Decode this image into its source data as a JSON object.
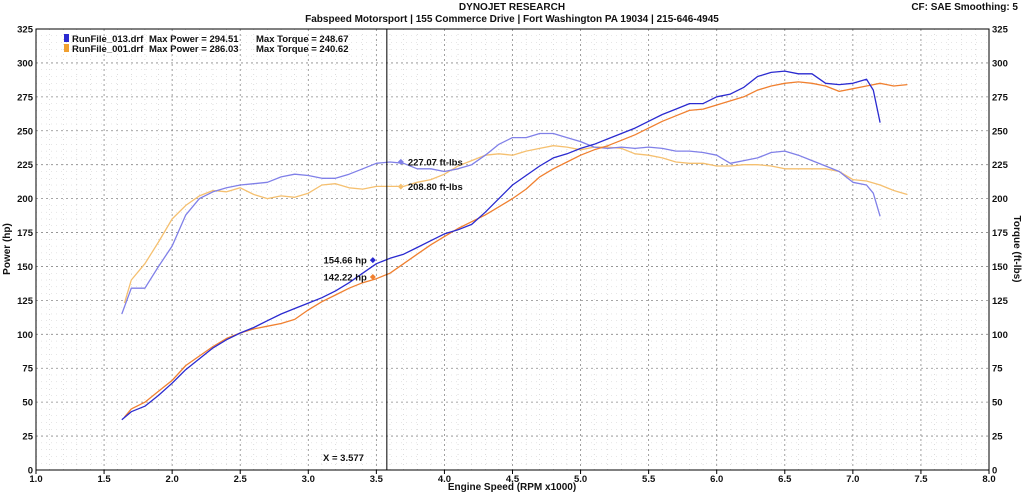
{
  "header": {
    "title": "DYNOJET RESEARCH",
    "subtitle": "Fabspeed Motorsport | 155 Commerce Drive | Fort Washington PA 19034 | 215-646-4945",
    "corner": "CF: SAE  Smoothing: 5"
  },
  "legend": [
    {
      "file": "RunFile_013.drf",
      "power": "Max Power = 294.51",
      "torque": "Max Torque = 248.67",
      "color": "#2a2ad0"
    },
    {
      "file": "RunFile_001.drf",
      "power": "Max Power = 286.03",
      "torque": "Max Torque = 240.62",
      "color": "#f0a030"
    }
  ],
  "cursor": {
    "label": "X = 3.577",
    "x": 3.577,
    "annotations": [
      {
        "text": "227.07 ft-lbs",
        "y": 227.07,
        "color": "#8080e8",
        "side": "right"
      },
      {
        "text": "208.80 ft-lbs",
        "y": 208.8,
        "color": "#f5c070",
        "side": "right"
      },
      {
        "text": "154.66 hp",
        "y": 154.66,
        "color": "#2a2ad0",
        "side": "left"
      },
      {
        "text": "142.22 hp",
        "y": 142.22,
        "color": "#f08030",
        "side": "left"
      }
    ]
  },
  "chart_data": {
    "type": "line",
    "xlabel": "Engine Speed (RPM x1000)",
    "ylabel_left": "Power (hp)",
    "ylabel_right": "Torque (ft-lbs)",
    "xlim": [
      1.0,
      8.0
    ],
    "ylim": [
      0,
      325
    ],
    "xticks": [
      "1.0",
      "1.5",
      "2.0",
      "2.5",
      "3.0",
      "3.5",
      "4.0",
      "4.5",
      "5.0",
      "5.5",
      "6.0",
      "6.5",
      "7.0",
      "7.5",
      "8.0"
    ],
    "yticks": [
      "0",
      "25",
      "50",
      "75",
      "100",
      "125",
      "150",
      "175",
      "200",
      "225",
      "250",
      "275",
      "300",
      "325"
    ],
    "grid": true,
    "series": [
      {
        "name": "RunFile_013.drf",
        "kind": "power",
        "color": "#2a2ad0",
        "x": [
          1.63,
          1.7,
          1.8,
          1.9,
          2.0,
          2.1,
          2.2,
          2.3,
          2.4,
          2.5,
          2.6,
          2.7,
          2.8,
          2.9,
          3.0,
          3.1,
          3.2,
          3.3,
          3.4,
          3.5,
          3.6,
          3.7,
          3.8,
          3.9,
          4.0,
          4.1,
          4.2,
          4.3,
          4.4,
          4.5,
          4.6,
          4.7,
          4.8,
          4.9,
          5.0,
          5.1,
          5.2,
          5.3,
          5.4,
          5.5,
          5.6,
          5.7,
          5.8,
          5.9,
          6.0,
          6.1,
          6.2,
          6.3,
          6.4,
          6.5,
          6.6,
          6.7,
          6.8,
          6.9,
          7.0,
          7.1,
          7.15,
          7.2
        ],
        "y": [
          37,
          43,
          47,
          55,
          64,
          74,
          82,
          90,
          96,
          101,
          105,
          110,
          115,
          119,
          123,
          127,
          132,
          138,
          145,
          152,
          156,
          159,
          164,
          169,
          174,
          177,
          181,
          190,
          200,
          210,
          217,
          224,
          230,
          233,
          237,
          240,
          244,
          248,
          252,
          257,
          262,
          266,
          270,
          270,
          275,
          277,
          282,
          290,
          293,
          294,
          292,
          292,
          285,
          284,
          285,
          288,
          280,
          256
        ]
      },
      {
        "name": "RunFile_013.drf",
        "kind": "torque",
        "color": "#8080e8",
        "x": [
          1.63,
          1.7,
          1.8,
          1.9,
          2.0,
          2.1,
          2.2,
          2.3,
          2.4,
          2.5,
          2.6,
          2.7,
          2.8,
          2.9,
          3.0,
          3.1,
          3.2,
          3.3,
          3.4,
          3.5,
          3.6,
          3.7,
          3.8,
          3.9,
          4.0,
          4.1,
          4.2,
          4.3,
          4.4,
          4.5,
          4.6,
          4.7,
          4.8,
          4.9,
          5.0,
          5.1,
          5.2,
          5.3,
          5.4,
          5.5,
          5.6,
          5.7,
          5.8,
          5.9,
          6.0,
          6.1,
          6.2,
          6.3,
          6.4,
          6.5,
          6.6,
          6.7,
          6.8,
          6.9,
          7.0,
          7.1,
          7.15,
          7.2
        ],
        "y": [
          115,
          134,
          134,
          150,
          165,
          188,
          200,
          205,
          208,
          210,
          211,
          212,
          216,
          218,
          217,
          215,
          215,
          218,
          222,
          226,
          227,
          226,
          222,
          222,
          220,
          222,
          225,
          232,
          240,
          245,
          245,
          248,
          248,
          245,
          242,
          238,
          237,
          238,
          237,
          238,
          237,
          235,
          235,
          234,
          232,
          226,
          228,
          230,
          234,
          235,
          232,
          228,
          224,
          220,
          212,
          210,
          204,
          187
        ]
      },
      {
        "name": "RunFile_001.drf",
        "kind": "power",
        "color": "#f08030",
        "x": [
          1.65,
          1.7,
          1.8,
          1.9,
          2.0,
          2.1,
          2.2,
          2.3,
          2.4,
          2.5,
          2.6,
          2.7,
          2.8,
          2.9,
          3.0,
          3.1,
          3.2,
          3.3,
          3.4,
          3.5,
          3.6,
          3.7,
          3.8,
          3.9,
          4.0,
          4.1,
          4.2,
          4.3,
          4.4,
          4.5,
          4.6,
          4.7,
          4.8,
          4.9,
          5.0,
          5.1,
          5.2,
          5.3,
          5.4,
          5.5,
          5.6,
          5.7,
          5.8,
          5.9,
          6.0,
          6.1,
          6.2,
          6.3,
          6.4,
          6.5,
          6.6,
          6.7,
          6.8,
          6.9,
          7.0,
          7.1,
          7.2,
          7.3,
          7.4
        ],
        "y": [
          39,
          45,
          50,
          58,
          66,
          77,
          84,
          91,
          97,
          101,
          104,
          106,
          108,
          111,
          118,
          124,
          129,
          134,
          138,
          141,
          145,
          152,
          159,
          166,
          172,
          178,
          183,
          188,
          194,
          200,
          207,
          216,
          222,
          227,
          232,
          236,
          239,
          243,
          247,
          252,
          257,
          261,
          265,
          266,
          269,
          272,
          275,
          280,
          283,
          285,
          286,
          285,
          283,
          279,
          281,
          283,
          285,
          283,
          284
        ]
      },
      {
        "name": "RunFile_001.drf",
        "kind": "torque",
        "color": "#f5c070",
        "x": [
          1.65,
          1.7,
          1.8,
          1.9,
          2.0,
          2.1,
          2.2,
          2.3,
          2.4,
          2.5,
          2.6,
          2.7,
          2.8,
          2.9,
          3.0,
          3.1,
          3.2,
          3.3,
          3.4,
          3.5,
          3.6,
          3.7,
          3.8,
          3.9,
          4.0,
          4.1,
          4.2,
          4.3,
          4.4,
          4.5,
          4.6,
          4.7,
          4.8,
          4.9,
          5.0,
          5.1,
          5.2,
          5.3,
          5.4,
          5.5,
          5.6,
          5.7,
          5.8,
          5.9,
          6.0,
          6.1,
          6.2,
          6.3,
          6.4,
          6.5,
          6.6,
          6.7,
          6.8,
          6.9,
          7.0,
          7.1,
          7.2,
          7.3,
          7.4
        ],
        "y": [
          123,
          140,
          152,
          168,
          185,
          195,
          202,
          206,
          205,
          208,
          203,
          200,
          202,
          201,
          204,
          210,
          211,
          208,
          207,
          209,
          209,
          209,
          212,
          214,
          218,
          224,
          228,
          232,
          233,
          232,
          235,
          237,
          239,
          238,
          236,
          238,
          238,
          237,
          233,
          232,
          230,
          227,
          226,
          226,
          224,
          224,
          225,
          225,
          224,
          222,
          222,
          222,
          222,
          220,
          214,
          213,
          210,
          206,
          203
        ]
      }
    ]
  }
}
